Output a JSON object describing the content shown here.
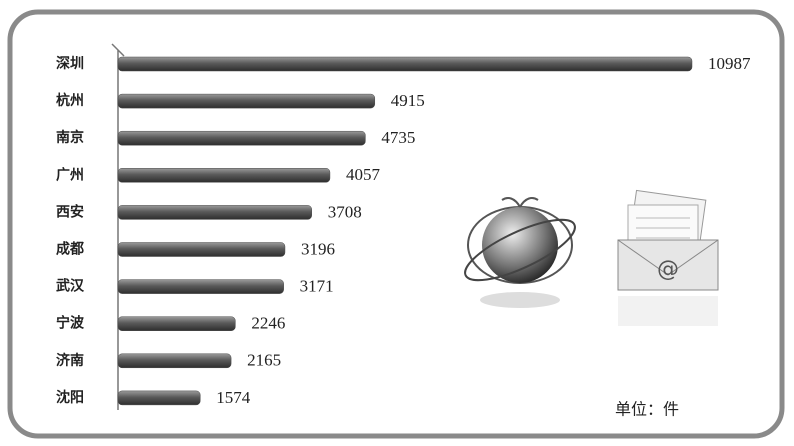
{
  "chart_data": {
    "type": "bar",
    "orientation": "horizontal",
    "categories": [
      "深圳",
      "杭州",
      "南京",
      "广州",
      "西安",
      "成都",
      "武汉",
      "宁波",
      "济南",
      "沈阳"
    ],
    "values": [
      10987,
      4915,
      4735,
      4057,
      3708,
      3196,
      3171,
      2246,
      2165,
      1574
    ],
    "color": "#4a4a4a",
    "annotation": "单位：件"
  }
}
